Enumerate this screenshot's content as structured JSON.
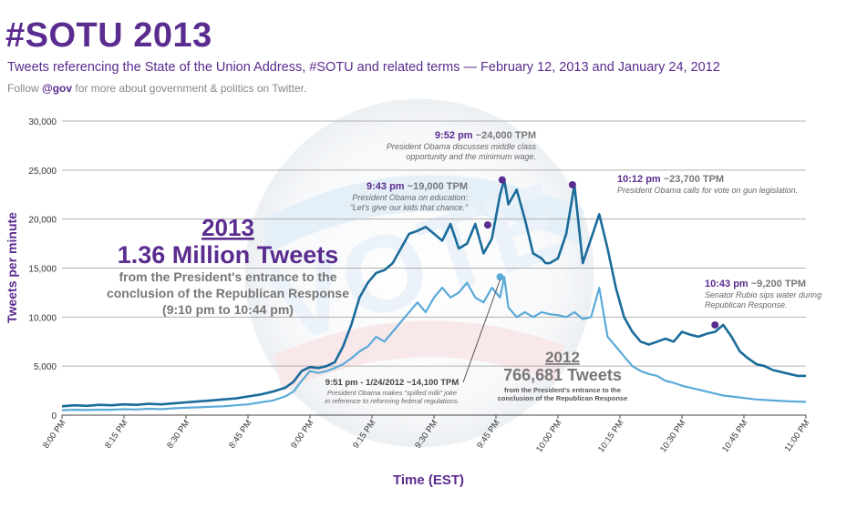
{
  "header": {
    "title": "#SOTU 2013",
    "subtitle": "Tweets referencing the State of the Union Address, #SOTU and related terms — February 12, 2013 and January 24, 2012",
    "follow_pre": "Follow ",
    "follow_handle": "@gov",
    "follow_post": " for more about government & politics on Twitter."
  },
  "colors": {
    "purple": "#5b2c8f",
    "series_2013": "#1a6b9a",
    "series_2012": "#5aaad8",
    "grid": "#b0b0b0",
    "gray_text": "#777777"
  },
  "chart_data": {
    "type": "line",
    "title": "#SOTU 2013",
    "xlabel": "Time (EST)",
    "ylabel": "Tweets per minute",
    "ylim": [
      0,
      30000
    ],
    "xlim": [
      0,
      180
    ],
    "yticks": [
      0,
      5000,
      10000,
      15000,
      20000,
      25000,
      30000
    ],
    "ytick_labels": [
      "0",
      "5,000",
      "10,000",
      "15,000",
      "20,000",
      "25,000",
      "30,000"
    ],
    "xticks": [
      0,
      15,
      30,
      45,
      60,
      75,
      90,
      105,
      120,
      135,
      150,
      165,
      180
    ],
    "xtick_labels": [
      "8:00 PM",
      "8:15 PM",
      "8:30 PM",
      "8:45 PM",
      "9:00 PM",
      "9:15 PM",
      "9:30 PM",
      "9:45 PM",
      "10:00 PM",
      "10:15 PM",
      "10:30 PM",
      "10:45 PM",
      "11:00 PM"
    ],
    "x_unit": "minutes after 8:00 PM",
    "series": [
      {
        "name": "2013",
        "x": [
          0,
          3,
          6,
          9,
          12,
          15,
          18,
          21,
          24,
          27,
          30,
          33,
          36,
          39,
          42,
          45,
          48,
          51,
          54,
          56,
          58,
          60,
          62,
          64,
          66,
          68,
          70,
          72,
          74,
          76,
          78,
          80,
          82,
          84,
          86,
          88,
          90,
          92,
          94,
          96,
          98,
          100,
          102,
          104,
          106,
          107,
          108,
          110,
          112,
          114,
          116,
          117,
          118,
          120,
          122,
          124,
          126,
          128,
          130,
          132,
          134,
          136,
          138,
          140,
          142,
          144,
          146,
          148,
          150,
          152,
          154,
          156,
          158,
          160,
          162,
          164,
          166,
          168,
          170,
          172,
          174,
          176,
          178,
          180
        ],
        "y": [
          900,
          1000,
          950,
          1050,
          1000,
          1100,
          1050,
          1150,
          1100,
          1200,
          1300,
          1400,
          1500,
          1600,
          1700,
          1900,
          2100,
          2400,
          2800,
          3400,
          4500,
          4900,
          4800,
          5000,
          5400,
          7000,
          9200,
          12000,
          13500,
          14500,
          14800,
          15500,
          17000,
          18500,
          18800,
          19200,
          18500,
          17800,
          19500,
          17000,
          17500,
          19500,
          16500,
          18000,
          22500,
          24000,
          21500,
          23000,
          20000,
          16500,
          16000,
          15500,
          15500,
          16000,
          18500,
          23500,
          15500,
          18000,
          20500,
          17000,
          13000,
          10000,
          8500,
          7500,
          7200,
          7500,
          7800,
          7500,
          8500,
          8200,
          8000,
          8300,
          8500,
          9200,
          8000,
          6500,
          5800,
          5200,
          5000,
          4600,
          4400,
          4200,
          4000,
          4000
        ]
      },
      {
        "name": "2012",
        "x": [
          0,
          3,
          6,
          9,
          12,
          15,
          18,
          21,
          24,
          27,
          30,
          33,
          36,
          39,
          42,
          45,
          48,
          51,
          54,
          56,
          58,
          60,
          62,
          64,
          66,
          68,
          70,
          72,
          74,
          76,
          78,
          80,
          82,
          84,
          86,
          88,
          90,
          92,
          94,
          96,
          98,
          100,
          102,
          104,
          106,
          107,
          108,
          110,
          112,
          114,
          116,
          118,
          120,
          122,
          124,
          126,
          128,
          130,
          132,
          134,
          136,
          138,
          140,
          142,
          144,
          146,
          148,
          150,
          152,
          154,
          156,
          158,
          160,
          162,
          164,
          166,
          168,
          170,
          172,
          174,
          176,
          178,
          180
        ],
        "y": [
          500,
          550,
          520,
          560,
          550,
          600,
          580,
          650,
          600,
          700,
          750,
          800,
          850,
          900,
          1000,
          1100,
          1300,
          1500,
          1900,
          2400,
          3500,
          4500,
          4300,
          4500,
          4800,
          5200,
          5800,
          6500,
          7000,
          8000,
          7500,
          8500,
          9500,
          10500,
          11500,
          10500,
          12000,
          13000,
          12000,
          12500,
          13500,
          12000,
          11500,
          13000,
          12000,
          14100,
          11000,
          10000,
          10500,
          10000,
          10500,
          10300,
          10200,
          10000,
          10500,
          9800,
          10000,
          13000,
          8000,
          7000,
          6000,
          5000,
          4500,
          4200,
          4000,
          3500,
          3300,
          3000,
          2800,
          2600,
          2400,
          2200,
          2000,
          1900,
          1800,
          1700,
          1600,
          1550,
          1500,
          1450,
          1400,
          1380,
          1350
        ]
      }
    ],
    "callouts": [
      {
        "series": "2013",
        "x": 106.5,
        "y": 24000,
        "time": "9:52 pm",
        "tpm": "~24,000 TPM",
        "text1": "President Obama discusses middle class",
        "text2": "opportunity and the minimum wage."
      },
      {
        "series": "2013",
        "x": 103,
        "y": 19400,
        "time": "9:43 pm",
        "tpm": "~19,000 TPM",
        "text1": "President Obama on education:",
        "text2": "“Let's give our kids that chance.”"
      },
      {
        "series": "2013",
        "x": 123.5,
        "y": 23500,
        "time": "10:12 pm",
        "tpm": "~23,700 TPM",
        "text1": "President Obama calls for vote on gun legislation.",
        "text2": ""
      },
      {
        "series": "2013",
        "x": 158,
        "y": 9200,
        "time": "10:43 pm",
        "tpm": "~9,200 TPM",
        "text1": "Senator Rubio sips water during",
        "text2": "Republican Response."
      },
      {
        "series": "2012",
        "x": 106,
        "y": 14100,
        "time": "9:51 pm - 1/24/2012",
        "tpm": "~14,100 TPM",
        "text1": "President Obama makes “spilled milk” joke",
        "text2": "in reference to reforming federal regulations."
      }
    ],
    "summary_2013": {
      "year": "2013",
      "total": "1.36 Million Tweets",
      "line1": "from the President's entrance to the",
      "line2": "conclusion of the Republican Response",
      "line3": "(9:10 pm to 10:44 pm)"
    },
    "summary_2012": {
      "year": "2012",
      "total": "766,681 Tweets",
      "line1": "from the President's entrance to the",
      "line2": "conclusion of the Republican Response"
    }
  }
}
